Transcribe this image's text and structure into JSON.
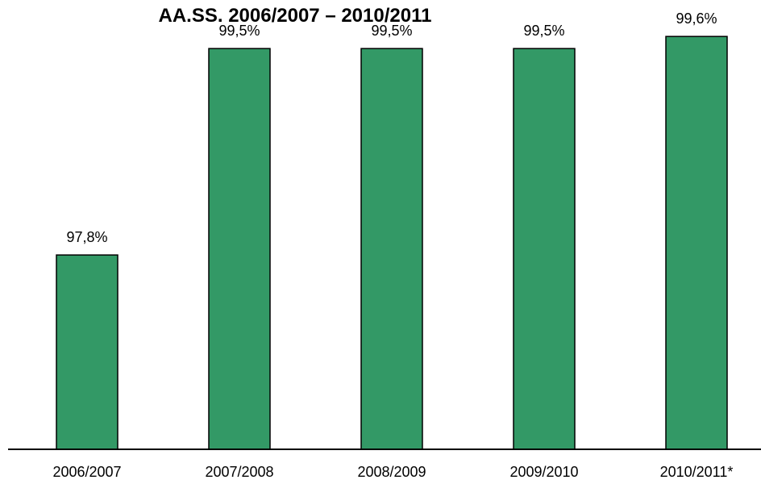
{
  "chart_data": {
    "type": "bar",
    "title": "AA.SS. 2006/2007 – 2010/2011",
    "categories": [
      "2006/2007",
      "2007/2008",
      "2008/2009",
      "2009/2010",
      "2010/2011*"
    ],
    "values": [
      97.8,
      99.5,
      99.5,
      99.5,
      99.6
    ],
    "data_labels": [
      "97,8%",
      "99,5%",
      "99,5%",
      "99,5%",
      "99,6%"
    ],
    "xlabel": "",
    "ylabel": "",
    "ylim": [
      96.2,
      99.9
    ],
    "grid": false,
    "legend": "none",
    "bar_color": "#339966",
    "bar_stroke": "#000000"
  }
}
